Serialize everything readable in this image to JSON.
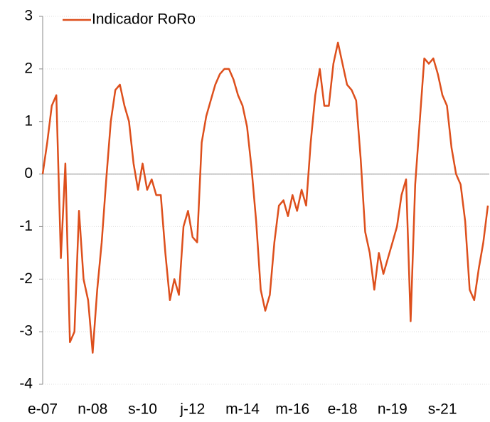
{
  "chart_data": {
    "type": "line",
    "categories": [
      "e-07",
      null,
      null,
      null,
      null,
      null,
      null,
      null,
      null,
      null,
      null,
      "n-08",
      null,
      null,
      null,
      null,
      null,
      null,
      null,
      null,
      null,
      null,
      "s-10",
      null,
      null,
      null,
      null,
      null,
      null,
      null,
      null,
      null,
      null,
      "j-12",
      null,
      null,
      null,
      null,
      null,
      null,
      null,
      null,
      null,
      null,
      "m-14",
      null,
      null,
      null,
      null,
      null,
      null,
      null,
      null,
      null,
      null,
      "m-16",
      null,
      null,
      null,
      null,
      null,
      null,
      null,
      null,
      null,
      null,
      "e-18",
      null,
      null,
      null,
      null,
      null,
      null,
      null,
      null,
      null,
      null,
      "n-19",
      null,
      null,
      null,
      null,
      null,
      null,
      null,
      null,
      null,
      null,
      "s-21",
      null,
      null,
      null,
      null,
      null,
      null,
      null,
      null,
      null,
      null
    ],
    "series": [
      {
        "name": "Indicador RoRo",
        "color": "#dd4f1c",
        "values": [
          0,
          0.6,
          1.3,
          1.5,
          -1.6,
          0.2,
          -3.2,
          -3.0,
          -0.7,
          -2.0,
          -2.4,
          -3.4,
          -2.2,
          -1.3,
          -0.1,
          1.0,
          1.6,
          1.7,
          1.3,
          1.0,
          0.2,
          -0.3,
          0.2,
          -0.3,
          -0.1,
          -0.4,
          -0.4,
          -1.5,
          -2.4,
          -2.0,
          -2.3,
          -1.0,
          -0.7,
          -1.2,
          -1.3,
          0.6,
          1.1,
          1.4,
          1.7,
          1.9,
          2.0,
          2.0,
          1.8,
          1.5,
          1.3,
          0.9,
          0.1,
          -0.9,
          -2.2,
          -2.6,
          -2.3,
          -1.3,
          -0.6,
          -0.5,
          -0.8,
          -0.4,
          -0.7,
          -0.3,
          -0.6,
          0.6,
          1.5,
          2.0,
          1.3,
          1.3,
          2.1,
          2.5,
          2.1,
          1.7,
          1.6,
          1.4,
          0.3,
          -1.1,
          -1.5,
          -2.2,
          -1.5,
          -1.9,
          -1.6,
          -1.3,
          -1.0,
          -0.4,
          -0.1,
          -2.8,
          -0.2,
          1.0,
          2.2,
          2.1,
          2.2,
          1.9,
          1.5,
          1.3,
          0.5,
          0.0,
          -0.2,
          -0.9,
          -2.2,
          -2.4,
          -1.8,
          -1.3,
          -0.6
        ]
      }
    ],
    "ylim": [
      -4,
      3
    ],
    "yticks": [
      -4,
      -3,
      -2,
      -1,
      0,
      1,
      2,
      3
    ],
    "grid": true,
    "legend": "top-left"
  }
}
